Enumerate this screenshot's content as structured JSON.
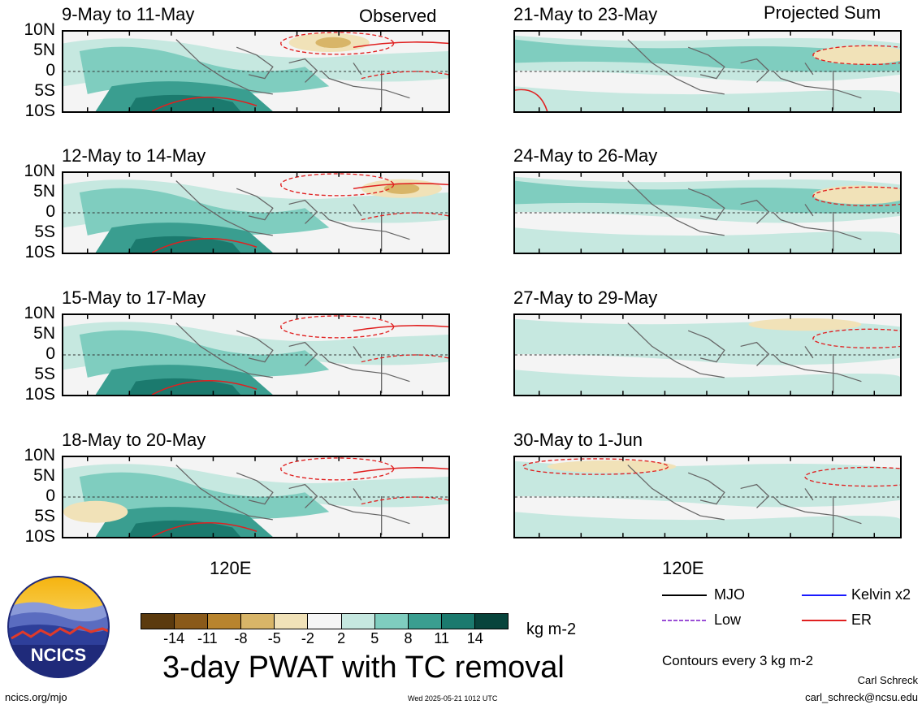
{
  "header": {
    "left_tag": "Observed",
    "right_tag": "Projected Sum"
  },
  "panels_left": [
    {
      "title": "9-May to 11-May"
    },
    {
      "title": "12-May to 14-May"
    },
    {
      "title": "15-May to 17-May"
    },
    {
      "title": "18-May to 20-May"
    }
  ],
  "panels_right": [
    {
      "title": "21-May to 23-May"
    },
    {
      "title": "24-May to 26-May"
    },
    {
      "title": "27-May to 29-May"
    },
    {
      "title": "30-May to 1-Jun"
    }
  ],
  "y_axis": [
    "10N",
    "5N",
    "0",
    "5S",
    "10S"
  ],
  "x_axis": {
    "label": "120E"
  },
  "colorbar": {
    "labels": [
      "-14",
      "-11",
      "-8",
      "-5",
      "-2",
      "2",
      "5",
      "8",
      "11",
      "14"
    ],
    "colors": [
      "#5b3a0e",
      "#8a5a1a",
      "#b8842e",
      "#d8b568",
      "#f1e2b8",
      "#f6f6f6",
      "#c6e8e0",
      "#7fcdbf",
      "#3a9e90",
      "#1b7a6e",
      "#08443c"
    ],
    "units": "kg m-2"
  },
  "main_title": "3-day PWAT with TC removal",
  "legend": {
    "items": [
      {
        "label": "MJO",
        "color": "#000000"
      },
      {
        "label": "Kelvin x2",
        "color": "#1a1aff"
      },
      {
        "label": "Low",
        "color": "#9b4fd6"
      },
      {
        "label": "ER",
        "color": "#e02020"
      }
    ],
    "contours_note": "Contours every 3 kg m-2"
  },
  "logo": {
    "text": "NCICS"
  },
  "footer": {
    "url": "ncics.org/mjo",
    "timestamp": "Wed 2025-05-21 1012 UTC",
    "author": "Carl Schreck",
    "email": "carl_schreck@ncsu.edu"
  }
}
